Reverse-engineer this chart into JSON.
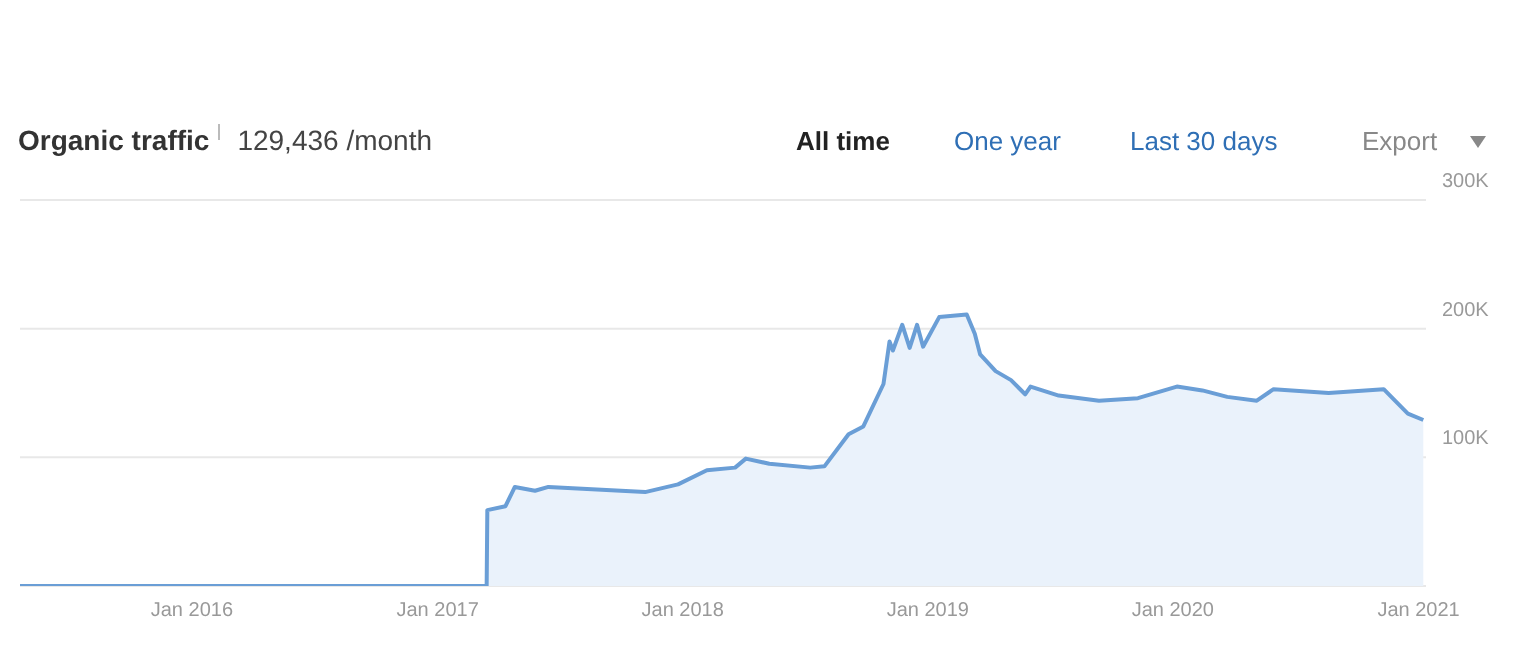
{
  "chart_data": {
    "type": "area",
    "title": "Organic traffic",
    "subtitle": "129,436 /month",
    "annotations": [
      "All time",
      "One year",
      "Last 30 days",
      "Export"
    ],
    "x": [
      "2015-04-20",
      "2017-03-15",
      "2017-03-16",
      "2017-04-12",
      "2017-04-26",
      "2017-05-26",
      "2017-06-15",
      "2017-11-06",
      "2017-12-25",
      "2018-02-06",
      "2018-03-20",
      "2018-04-05",
      "2018-05-10",
      "2018-07-10",
      "2018-07-31",
      "2018-09-05",
      "2018-09-27",
      "2018-10-27",
      "2018-11-05",
      "2018-11-10",
      "2018-11-24",
      "2018-12-05",
      "2018-12-16",
      "2018-12-25",
      "2019-01-18",
      "2019-02-28",
      "2019-03-12",
      "2019-03-20",
      "2019-04-12",
      "2019-05-05",
      "2019-05-26",
      "2019-06-03",
      "2019-07-15",
      "2019-09-13",
      "2019-11-10",
      "2020-01-07",
      "2020-02-14",
      "2020-03-22",
      "2020-05-05",
      "2020-05-30",
      "2020-08-20",
      "2020-11-10",
      "2020-11-25",
      "2020-12-16",
      "2021-01-08"
    ],
    "values": [
      0,
      0,
      59000,
      62000,
      77000,
      74000,
      77000,
      73000,
      79000,
      90000,
      92000,
      99000,
      95000,
      92000,
      93000,
      118000,
      124000,
      157000,
      190000,
      183000,
      203000,
      185000,
      203000,
      186000,
      209000,
      211000,
      196000,
      180000,
      167000,
      160000,
      149000,
      155000,
      148000,
      144000,
      146000,
      155000,
      152000,
      147000,
      144000,
      153000,
      150000,
      153000,
      145000,
      134000,
      129000
    ],
    "color": "#6a9ed6",
    "xlim": [
      "2015-04-20",
      "2021-01-12"
    ],
    "xticks": [
      {
        "value": "2016-01",
        "label": "Jan 2016"
      },
      {
        "value": "2017-01",
        "label": "Jan 2017"
      },
      {
        "value": "2018-01",
        "label": "Jan 2018"
      },
      {
        "value": "2019-01",
        "label": "Jan 2019"
      },
      {
        "value": "2020-01",
        "label": "Jan 2020"
      },
      {
        "value": "2021-01",
        "label": "Jan 2021"
      }
    ],
    "ylim": [
      0,
      300000
    ],
    "yticks": [
      {
        "value": 0,
        "label": null
      },
      {
        "value": 100000,
        "label": "100K"
      },
      {
        "value": 200000,
        "label": "200K"
      },
      {
        "value": 300000,
        "label": "300K"
      }
    ],
    "grid": "y"
  }
}
